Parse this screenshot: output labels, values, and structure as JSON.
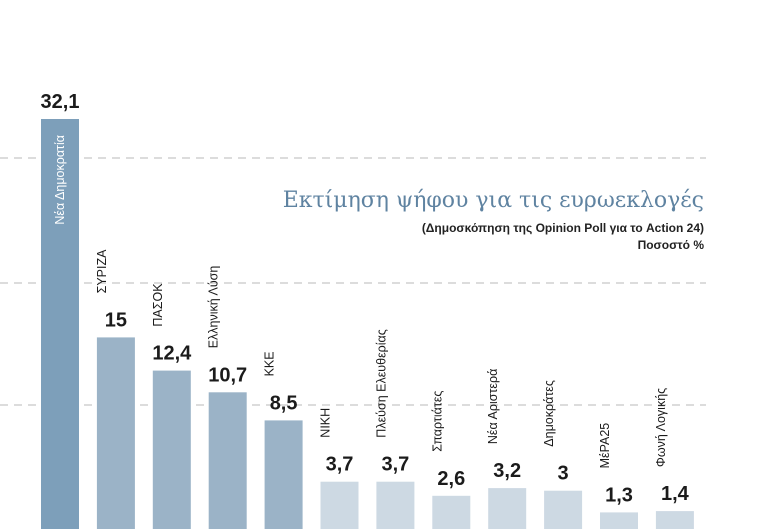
{
  "chart_data": {
    "type": "bar",
    "title": "Εκτίμηση ψήφου για τις ευρωεκλογές",
    "subtitle": "(Δημοσκόπηση της Opinion Poll για το Action 24)",
    "unit_label": "Ποσοστό %",
    "categories": [
      "Νέα Δημοκρατία",
      "ΣΥΡΙΖΑ",
      "ΠΑΣΟΚ",
      "Ελληνική Λύση",
      "ΚΚΕ",
      "ΝΙΚΗ",
      "Πλεύση Ελευθερίας",
      "Σπαρτιάτες",
      "Νέα Αριστερά",
      "Δημοκράτες",
      "ΜέΡΑ25",
      "Φωνή Λογικής"
    ],
    "values": [
      32.1,
      15,
      12.4,
      10.7,
      8.5,
      3.7,
      3.7,
      2.6,
      3.2,
      3,
      1.3,
      1.4
    ],
    "value_labels": [
      "32,1",
      "15",
      "12,4",
      "10,7",
      "8,5",
      "3,7",
      "3,7",
      "2,6",
      "3,2",
      "3",
      "1,3",
      "1,4"
    ],
    "colors": {
      "first": "#7d9fba",
      "main": "#9bb3c7",
      "minor": "#cdd9e3"
    },
    "grid": true,
    "xlabel": "",
    "ylabel": ""
  }
}
